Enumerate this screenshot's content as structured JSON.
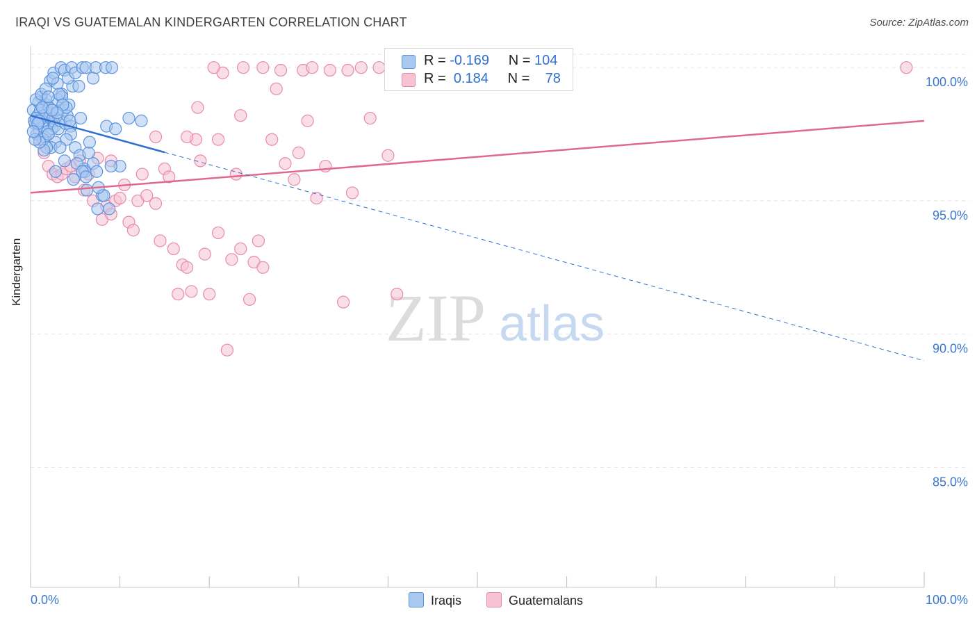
{
  "title": "IRAQI VS GUATEMALAN KINDERGARTEN CORRELATION CHART",
  "source": "Source: ZipAtlas.com",
  "watermark": {
    "zip": "ZIP",
    "atlas": "atlas"
  },
  "legend": {
    "rows": [
      {
        "r_label": "R =",
        "r_value": "-0.169",
        "n_label": "N =",
        "n_value": "104"
      },
      {
        "r_label": "R =",
        "r_value": "0.184",
        "n_label": "N =",
        "n_value": "78"
      }
    ]
  },
  "bottom_legend": {
    "iraqis": "Iraqis",
    "guatemalans": "Guatemalans"
  },
  "colors": {
    "iraqis_fill": "#a9c8f0",
    "iraqis_stroke": "#5b93dc",
    "iraqis_line": "#2f6fd0",
    "guatemalans_fill": "#f6c2d4",
    "guatemalans_stroke": "#e88aaa",
    "guatemalans_line": "#e0688f",
    "tick_label": "#3a78d0",
    "grid": "#e3e3e3"
  },
  "chart_data": {
    "type": "scatter",
    "title": "IRAQI VS GUATEMALAN KINDERGARTEN CORRELATION CHART",
    "xlabel": "",
    "ylabel": "Kindergarten",
    "xlim": [
      0,
      100
    ],
    "ylim": [
      80.5,
      100.5
    ],
    "x_tick_labels": [
      "0.0%",
      "100.0%"
    ],
    "y_ticks": [
      100,
      95,
      90,
      85
    ],
    "y_tick_labels": [
      "100.0%",
      "95.0%",
      "90.0%",
      "85.0%"
    ],
    "series": [
      {
        "name": "Iraqis",
        "R": -0.169,
        "N": 104,
        "trend": {
          "x": [
            0,
            100
          ],
          "y": [
            98.2,
            89.0
          ],
          "solid_until_x": 15
        },
        "points": [
          [
            0.3,
            98.4
          ],
          [
            0.5,
            97.9
          ],
          [
            0.8,
            98.2
          ],
          [
            1.0,
            97.6
          ],
          [
            1.2,
            98.9
          ],
          [
            1.4,
            98.1
          ],
          [
            1.6,
            97.4
          ],
          [
            1.8,
            98.6
          ],
          [
            2.0,
            97.9
          ],
          [
            2.2,
            98.3
          ],
          [
            2.4,
            97.7
          ],
          [
            2.6,
            98.0
          ],
          [
            2.8,
            97.2
          ],
          [
            0.4,
            98.0
          ],
          [
            0.7,
            97.5
          ],
          [
            0.9,
            98.7
          ],
          [
            1.1,
            98.4
          ],
          [
            1.3,
            97.8
          ],
          [
            1.5,
            98.2
          ],
          [
            1.7,
            98.8
          ],
          [
            1.9,
            97.6
          ],
          [
            2.1,
            98.5
          ],
          [
            2.3,
            97.0
          ],
          [
            2.5,
            98.1
          ],
          [
            2.7,
            97.8
          ],
          [
            2.9,
            98.3
          ],
          [
            3.1,
            97.7
          ],
          [
            3.3,
            98.0
          ],
          [
            3.5,
            99.0
          ],
          [
            3.7,
            98.4
          ],
          [
            3.9,
            97.9
          ],
          [
            4.1,
            98.2
          ],
          [
            4.3,
            98.6
          ],
          [
            4.5,
            97.8
          ],
          [
            4.7,
            99.3
          ],
          [
            0.6,
            98.1
          ],
          [
            1.0,
            98.0
          ],
          [
            1.4,
            97.3
          ],
          [
            1.8,
            97.0
          ],
          [
            2.2,
            99.5
          ],
          [
            2.6,
            99.8
          ],
          [
            3.0,
            99.4
          ],
          [
            3.4,
            100.0
          ],
          [
            3.8,
            99.9
          ],
          [
            4.2,
            99.6
          ],
          [
            4.6,
            100.0
          ],
          [
            5.0,
            99.8
          ],
          [
            5.4,
            99.3
          ],
          [
            5.8,
            100.0
          ],
          [
            6.2,
            100.0
          ],
          [
            7.0,
            99.6
          ],
          [
            7.3,
            100.0
          ],
          [
            8.4,
            100.0
          ],
          [
            9.1,
            100.0
          ],
          [
            3.0,
            98.8
          ],
          [
            3.5,
            98.9
          ],
          [
            4.0,
            98.5
          ],
          [
            4.5,
            97.5
          ],
          [
            5.0,
            97.0
          ],
          [
            5.5,
            96.7
          ],
          [
            6.0,
            96.2
          ],
          [
            6.3,
            95.4
          ],
          [
            7.0,
            96.4
          ],
          [
            7.4,
            96.1
          ],
          [
            6.5,
            96.8
          ],
          [
            6.1,
            96.1
          ],
          [
            4.8,
            95.8
          ],
          [
            8.0,
            95.2
          ],
          [
            8.5,
            97.8
          ],
          [
            10.0,
            96.3
          ],
          [
            8.8,
            94.7
          ],
          [
            8.2,
            95.2
          ],
          [
            7.5,
            94.7
          ],
          [
            9.5,
            97.7
          ],
          [
            11.0,
            98.1
          ],
          [
            9.0,
            96.3
          ],
          [
            2.0,
            97.5
          ],
          [
            1.5,
            96.9
          ],
          [
            1.0,
            97.2
          ],
          [
            0.5,
            97.3
          ],
          [
            0.6,
            98.8
          ],
          [
            1.2,
            99.0
          ],
          [
            1.7,
            99.2
          ],
          [
            2.5,
            99.6
          ],
          [
            3.2,
            99.0
          ],
          [
            3.6,
            98.6
          ],
          [
            4.0,
            97.3
          ],
          [
            5.2,
            96.4
          ],
          [
            5.8,
            96.1
          ],
          [
            6.6,
            97.2
          ],
          [
            2.8,
            96.1
          ],
          [
            3.3,
            97.0
          ],
          [
            3.0,
            98.3
          ],
          [
            1.3,
            98.5
          ],
          [
            0.8,
            97.9
          ],
          [
            0.3,
            97.6
          ],
          [
            2.0,
            98.9
          ],
          [
            2.4,
            98.4
          ],
          [
            4.4,
            98.0
          ],
          [
            5.6,
            98.1
          ],
          [
            6.2,
            95.9
          ],
          [
            3.8,
            96.5
          ],
          [
            12.4,
            98.0
          ],
          [
            7.6,
            95.5
          ]
        ]
      },
      {
        "name": "Guatemalans",
        "R": 0.184,
        "N": 78,
        "trend": {
          "x": [
            0,
            100
          ],
          "y": [
            95.3,
            98.0
          ]
        },
        "points": [
          [
            1.0,
            97.3
          ],
          [
            1.5,
            96.8
          ],
          [
            2.0,
            96.3
          ],
          [
            2.5,
            96.0
          ],
          [
            3.0,
            95.9
          ],
          [
            3.5,
            96.0
          ],
          [
            4.0,
            96.2
          ],
          [
            4.5,
            96.3
          ],
          [
            5.0,
            95.9
          ],
          [
            5.5,
            96.5
          ],
          [
            6.0,
            95.4
          ],
          [
            6.5,
            96.0
          ],
          [
            7.0,
            95.0
          ],
          [
            7.5,
            96.6
          ],
          [
            8.0,
            94.3
          ],
          [
            8.5,
            94.8
          ],
          [
            9.0,
            94.5
          ],
          [
            9.5,
            95.0
          ],
          [
            10.0,
            95.1
          ],
          [
            10.5,
            95.6
          ],
          [
            11.0,
            94.2
          ],
          [
            11.5,
            93.9
          ],
          [
            12.0,
            95.0
          ],
          [
            12.5,
            96.0
          ],
          [
            13.0,
            95.2
          ],
          [
            14.0,
            94.9
          ],
          [
            14.5,
            93.5
          ],
          [
            15.0,
            96.2
          ],
          [
            15.5,
            95.9
          ],
          [
            16.0,
            93.2
          ],
          [
            16.5,
            91.5
          ],
          [
            17.0,
            92.6
          ],
          [
            17.5,
            92.5
          ],
          [
            18.0,
            91.6
          ],
          [
            18.5,
            97.3
          ],
          [
            19.0,
            96.5
          ],
          [
            19.5,
            93.0
          ],
          [
            20.0,
            91.5
          ],
          [
            21.0,
            93.8
          ],
          [
            22.0,
            89.4
          ],
          [
            22.5,
            92.8
          ],
          [
            23.0,
            96.0
          ],
          [
            23.5,
            93.2
          ],
          [
            24.5,
            91.3
          ],
          [
            25.0,
            92.7
          ],
          [
            25.5,
            93.5
          ],
          [
            26.0,
            92.5
          ],
          [
            27.0,
            97.3
          ],
          [
            28.5,
            96.4
          ],
          [
            29.5,
            95.8
          ],
          [
            30.0,
            96.8
          ],
          [
            31.0,
            98.0
          ],
          [
            32.0,
            95.1
          ],
          [
            33.0,
            96.3
          ],
          [
            35.0,
            91.2
          ],
          [
            36.0,
            95.3
          ],
          [
            38.0,
            98.1
          ],
          [
            40.0,
            96.7
          ],
          [
            41.0,
            91.5
          ],
          [
            14.0,
            97.4
          ],
          [
            17.5,
            97.4
          ],
          [
            18.7,
            98.5
          ],
          [
            21.0,
            97.3
          ],
          [
            21.5,
            99.8
          ],
          [
            23.5,
            98.2
          ],
          [
            27.5,
            99.2
          ],
          [
            28.0,
            99.9
          ],
          [
            30.5,
            99.9
          ],
          [
            33.5,
            99.9
          ],
          [
            35.5,
            99.9
          ],
          [
            20.5,
            100.0
          ],
          [
            23.8,
            100.0
          ],
          [
            26.0,
            100.0
          ],
          [
            31.5,
            100.0
          ],
          [
            37.0,
            100.0
          ],
          [
            39.0,
            100.0
          ],
          [
            98.0,
            100.0
          ],
          [
            9.0,
            96.5
          ]
        ]
      }
    ]
  }
}
